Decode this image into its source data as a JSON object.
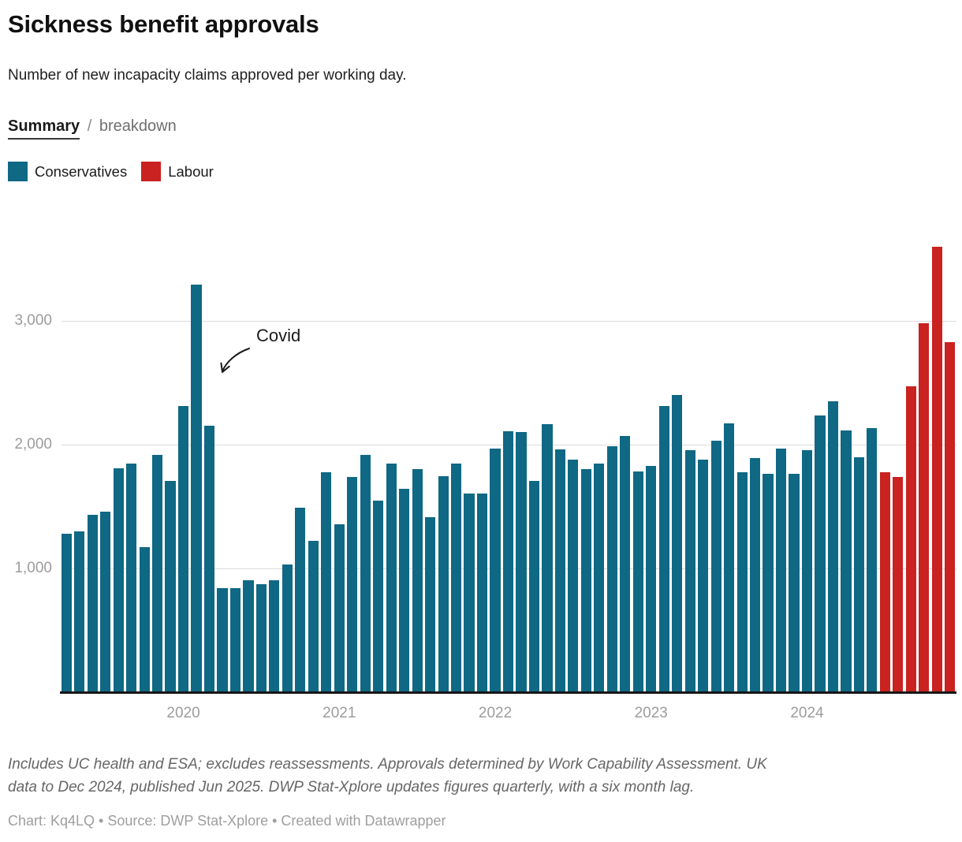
{
  "toggle": {
    "active": "Summary",
    "separator": "/",
    "inactive": "breakdown"
  },
  "legend": [
    {
      "label": "Conservatives",
      "color": "#0f6884"
    },
    {
      "label": "Labour",
      "color": "#c92220"
    }
  ],
  "chart_data": {
    "type": "bar",
    "title": "Sickness benefit approvals",
    "subtitle": "Number of new incapacity claims approved per working day.",
    "xlabel": "",
    "ylabel": "",
    "ylim": [
      0,
      3700
    ],
    "grid": "horizontal",
    "legend_position": "top-left",
    "yticks": [
      {
        "value": 1000,
        "label": "1,000"
      },
      {
        "value": 2000,
        "label": "2,000"
      },
      {
        "value": 3000,
        "label": "3,000"
      }
    ],
    "xtick_labels": [
      "2020",
      "2021",
      "2022",
      "2023",
      "2024"
    ],
    "annotations": [
      {
        "text": "Covid",
        "target_month": "Feb 2020"
      }
    ],
    "bars": [
      {
        "month": "Apr 2019",
        "value": 1280,
        "party": "Conservatives"
      },
      {
        "month": "May 2019",
        "value": 1300,
        "party": "Conservatives"
      },
      {
        "month": "Jun 2019",
        "value": 1430,
        "party": "Conservatives"
      },
      {
        "month": "Jul 2019",
        "value": 1460,
        "party": "Conservatives"
      },
      {
        "month": "Aug 2019",
        "value": 1810,
        "party": "Conservatives"
      },
      {
        "month": "Sep 2019",
        "value": 1845,
        "party": "Conservatives"
      },
      {
        "month": "Oct 2019",
        "value": 1170,
        "party": "Conservatives"
      },
      {
        "month": "Nov 2019",
        "value": 1920,
        "party": "Conservatives"
      },
      {
        "month": "Dec 2019",
        "value": 1710,
        "party": "Conservatives"
      },
      {
        "month": "Jan 2020",
        "value": 2310,
        "party": "Conservatives"
      },
      {
        "month": "Feb 2020",
        "value": 3290,
        "party": "Conservatives"
      },
      {
        "month": "Mar 2020",
        "value": 2150,
        "party": "Conservatives"
      },
      {
        "month": "Apr 2020",
        "value": 840,
        "party": "Conservatives"
      },
      {
        "month": "May 2020",
        "value": 840,
        "party": "Conservatives"
      },
      {
        "month": "Jun 2020",
        "value": 905,
        "party": "Conservatives"
      },
      {
        "month": "Jul 2020",
        "value": 870,
        "party": "Conservatives"
      },
      {
        "month": "Aug 2020",
        "value": 905,
        "party": "Conservatives"
      },
      {
        "month": "Sep 2020",
        "value": 1030,
        "party": "Conservatives"
      },
      {
        "month": "Oct 2020",
        "value": 1490,
        "party": "Conservatives"
      },
      {
        "month": "Nov 2020",
        "value": 1225,
        "party": "Conservatives"
      },
      {
        "month": "Dec 2020",
        "value": 1780,
        "party": "Conservatives"
      },
      {
        "month": "Jan 2021",
        "value": 1355,
        "party": "Conservatives"
      },
      {
        "month": "Feb 2021",
        "value": 1740,
        "party": "Conservatives"
      },
      {
        "month": "Mar 2021",
        "value": 1920,
        "party": "Conservatives"
      },
      {
        "month": "Apr 2021",
        "value": 1545,
        "party": "Conservatives"
      },
      {
        "month": "May 2021",
        "value": 1850,
        "party": "Conservatives"
      },
      {
        "month": "Jun 2021",
        "value": 1645,
        "party": "Conservatives"
      },
      {
        "month": "Jul 2021",
        "value": 1800,
        "party": "Conservatives"
      },
      {
        "month": "Aug 2021",
        "value": 1415,
        "party": "Conservatives"
      },
      {
        "month": "Sep 2021",
        "value": 1745,
        "party": "Conservatives"
      },
      {
        "month": "Oct 2021",
        "value": 1850,
        "party": "Conservatives"
      },
      {
        "month": "Nov 2021",
        "value": 1605,
        "party": "Conservatives"
      },
      {
        "month": "Dec 2021",
        "value": 1605,
        "party": "Conservatives"
      },
      {
        "month": "Jan 2022",
        "value": 1965,
        "party": "Conservatives"
      },
      {
        "month": "Feb 2022",
        "value": 2110,
        "party": "Conservatives"
      },
      {
        "month": "Mar 2022",
        "value": 2105,
        "party": "Conservatives"
      },
      {
        "month": "Apr 2022",
        "value": 1710,
        "party": "Conservatives"
      },
      {
        "month": "May 2022",
        "value": 2165,
        "party": "Conservatives"
      },
      {
        "month": "Jun 2022",
        "value": 1960,
        "party": "Conservatives"
      },
      {
        "month": "Jul 2022",
        "value": 1880,
        "party": "Conservatives"
      },
      {
        "month": "Aug 2022",
        "value": 1805,
        "party": "Conservatives"
      },
      {
        "month": "Sep 2022",
        "value": 1850,
        "party": "Conservatives"
      },
      {
        "month": "Oct 2022",
        "value": 1985,
        "party": "Conservatives"
      },
      {
        "month": "Nov 2022",
        "value": 2070,
        "party": "Conservatives"
      },
      {
        "month": "Dec 2022",
        "value": 1785,
        "party": "Conservatives"
      },
      {
        "month": "Jan 2023",
        "value": 1825,
        "party": "Conservatives"
      },
      {
        "month": "Feb 2023",
        "value": 2310,
        "party": "Conservatives"
      },
      {
        "month": "Mar 2023",
        "value": 2400,
        "party": "Conservatives"
      },
      {
        "month": "Apr 2023",
        "value": 1955,
        "party": "Conservatives"
      },
      {
        "month": "May 2023",
        "value": 1880,
        "party": "Conservatives"
      },
      {
        "month": "Jun 2023",
        "value": 2035,
        "party": "Conservatives"
      },
      {
        "month": "Jul 2023",
        "value": 2175,
        "party": "Conservatives"
      },
      {
        "month": "Aug 2023",
        "value": 1780,
        "party": "Conservatives"
      },
      {
        "month": "Sep 2023",
        "value": 1890,
        "party": "Conservatives"
      },
      {
        "month": "Oct 2023",
        "value": 1765,
        "party": "Conservatives"
      },
      {
        "month": "Nov 2023",
        "value": 1970,
        "party": "Conservatives"
      },
      {
        "month": "Dec 2023",
        "value": 1765,
        "party": "Conservatives"
      },
      {
        "month": "Jan 2024",
        "value": 1955,
        "party": "Conservatives"
      },
      {
        "month": "Feb 2024",
        "value": 2235,
        "party": "Conservatives"
      },
      {
        "month": "Mar 2024",
        "value": 2350,
        "party": "Conservatives"
      },
      {
        "month": "Apr 2024",
        "value": 2115,
        "party": "Conservatives"
      },
      {
        "month": "May 2024",
        "value": 1900,
        "party": "Conservatives"
      },
      {
        "month": "Jun 2024",
        "value": 2135,
        "party": "Conservatives"
      },
      {
        "month": "Jul 2024",
        "value": 1780,
        "party": "Labour"
      },
      {
        "month": "Aug 2024",
        "value": 1740,
        "party": "Labour"
      },
      {
        "month": "Sep 2024",
        "value": 2470,
        "party": "Labour"
      },
      {
        "month": "Oct 2024",
        "value": 2980,
        "party": "Labour"
      },
      {
        "month": "Nov 2024",
        "value": 3600,
        "party": "Labour"
      },
      {
        "month": "Dec 2024",
        "value": 2830,
        "party": "Labour"
      }
    ]
  },
  "footer": {
    "notes": "Includes UC health and ESA; excludes reassessments. Approvals determined by Work Capability Assessment. UK data to Dec 2024, published Jun 2025. DWP Stat-Xplore updates figures quarterly, with a six month lag.",
    "byline": "Chart: Kq4LQ • Source: DWP Stat-Xplore • Created with Datawrapper"
  }
}
